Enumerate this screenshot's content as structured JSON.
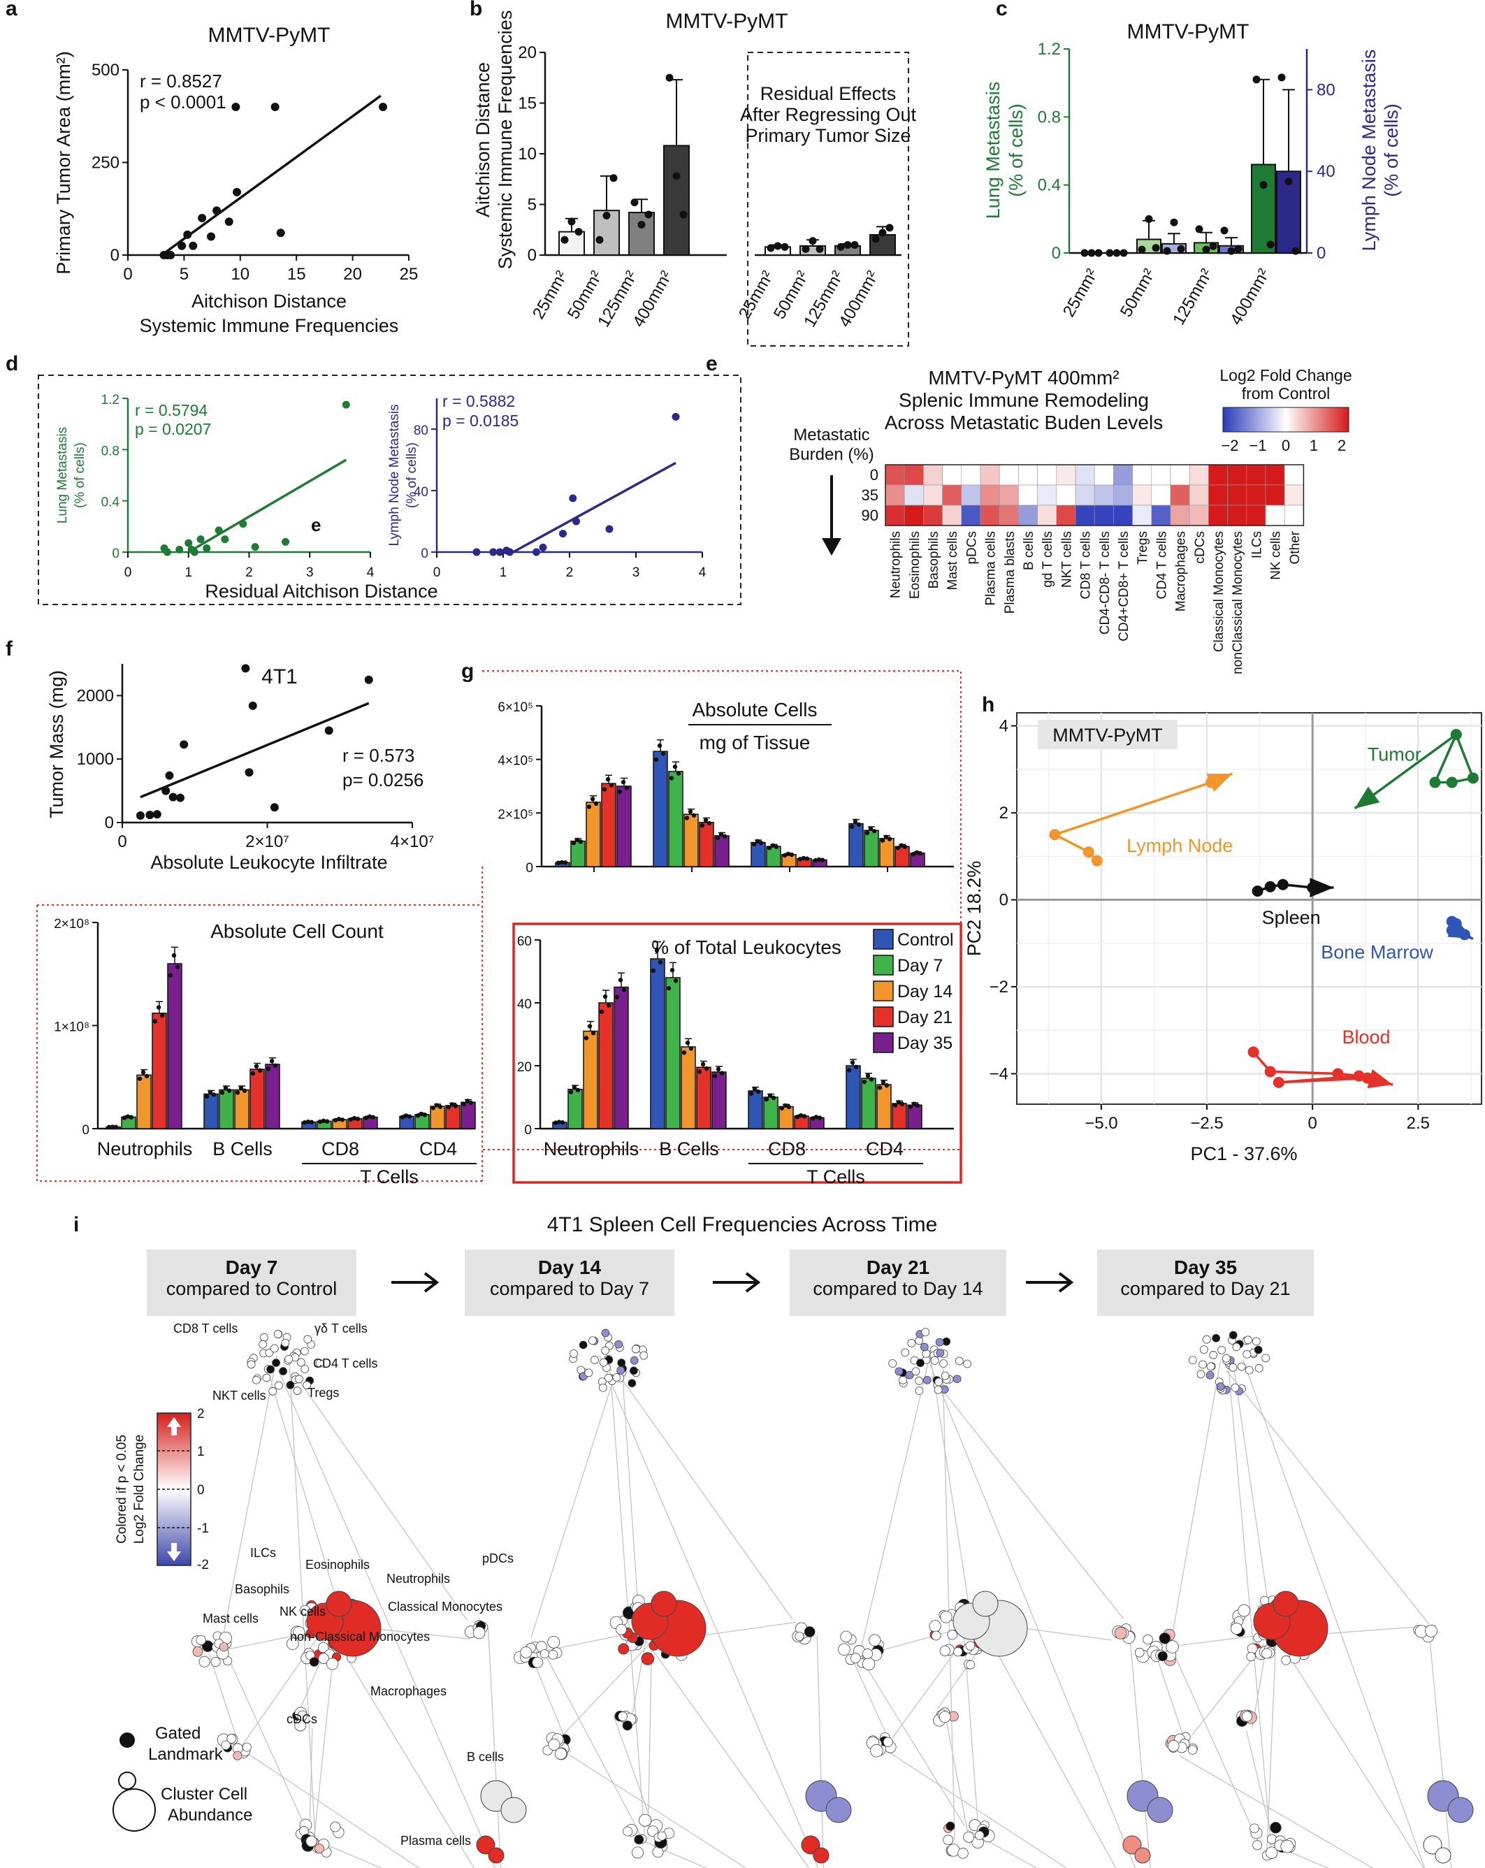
{
  "colors": {
    "green": "#1e7a34",
    "navy": "#2b2a8a",
    "orange": "#f0962c",
    "red": "#e4322b",
    "blue": "#2f55b5",
    "purple": "#7a1f8e",
    "lgreen": "#3fb34a",
    "black": "#111111",
    "grid": "#e5e5e5"
  },
  "panel_labels": {
    "a": "a",
    "b": "b",
    "c": "c",
    "d": "d",
    "e": "e",
    "f": "f",
    "g": "g",
    "h": "h",
    "i": "i"
  },
  "chart_data": [
    {
      "id": "a",
      "type": "scatter",
      "title": "MMTV-PyMT",
      "ylabel": "Primary Tumor Area (mm²)",
      "xlabel": [
        "Aitchison Distance",
        "Systemic Immune Frequencies"
      ],
      "xlim": [
        0,
        25
      ],
      "ylim": [
        0,
        500
      ],
      "xticks": [
        "0",
        "5",
        "10",
        "15",
        "20",
        "25"
      ],
      "yticks": [
        "0",
        "250",
        "500"
      ],
      "stats": [
        "r = 0.8527",
        "p < 0.0001"
      ],
      "x": [
        3.2,
        3.5,
        3.8,
        4.8,
        5.3,
        5.8,
        6.6,
        7.4,
        7.9,
        9.0,
        9.6,
        9.7,
        13.1,
        13.6,
        22.7
      ],
      "y": [
        0,
        0,
        0,
        25,
        55,
        25,
        100,
        50,
        120,
        90,
        400,
        170,
        400,
        60,
        400
      ],
      "fit": [
        [
          3,
          0
        ],
        [
          22.5,
          430
        ]
      ]
    },
    {
      "id": "b",
      "type": "bar",
      "title": "MMTV-PyMT",
      "ylabel": [
        "Aitchison Distance",
        "Systemic Immune Frequencies"
      ],
      "ylim": [
        0,
        20
      ],
      "yticks": [
        "0",
        "5",
        "10",
        "15",
        "20"
      ],
      "categories": [
        "25mm²",
        "50mm²",
        "125mm²",
        "400mm²"
      ],
      "box_text": [
        "Residual Effects",
        "After Regressing Out",
        "Primary Tumor Size"
      ],
      "groups": [
        {
          "name": "",
          "values": [
            2.3,
            4.4,
            4.2,
            10.8
          ],
          "sd": [
            1.3,
            3.4,
            1.3,
            6.5
          ],
          "points": [
            [
              1.5,
              3.3,
              2.3
            ],
            [
              1.5,
              3.9,
              7.6
            ],
            [
              5.2,
              3.0,
              4.0
            ],
            [
              17.5,
              7.8,
              4.0
            ]
          ]
        },
        {
          "name": "Residual Effects",
          "values": [
            0.8,
            0.9,
            0.9,
            2.0
          ],
          "sd": [
            0.2,
            0.6,
            0.2,
            0.8
          ],
          "points": [
            [
              0.7,
              0.9,
              0.8
            ],
            [
              0.6,
              1.4,
              0.6
            ],
            [
              0.8,
              1.0,
              1.0
            ],
            [
              1.6,
              2.2,
              2.7
            ]
          ]
        }
      ],
      "colors": [
        "#f3f3f3",
        "#bfbfbf",
        "#808080",
        "#3a3a3a"
      ]
    },
    {
      "id": "c",
      "type": "bar",
      "title": "MMTV-PyMT",
      "ylabel": [
        "Lung Metastasis",
        "(% of cells)"
      ],
      "y2label": [
        "Lymph Node Metastasis",
        "(% of cells)"
      ],
      "ylim": [
        0,
        1.2
      ],
      "y2lim": [
        0,
        100
      ],
      "yticks": [
        "0",
        "0.4",
        "0.8",
        "1.2"
      ],
      "y2ticks": [
        "0",
        "40",
        "80"
      ],
      "categories": [
        "25mm²",
        "50mm²",
        "125mm²",
        "400mm²"
      ],
      "series": [
        {
          "name": "Lung Metastasis",
          "values": [
            0,
            0.08,
            0.06,
            0.52
          ],
          "sd": [
            0,
            0.11,
            0.06,
            0.5
          ],
          "points": [
            [
              0,
              0,
              0
            ],
            [
              0.02,
              0.2,
              0.03
            ],
            [
              0.14,
              0.02,
              0.04
            ],
            [
              1.02,
              0.4,
              0.05
            ]
          ]
        },
        {
          "name": "Lymph Node Metastasis",
          "values": [
            0,
            4.5,
            3.5,
            40
          ],
          "sd": [
            0,
            5,
            4,
            40
          ],
          "points": [
            [
              0,
              0,
              0
            ],
            [
              1,
              15,
              2
            ],
            [
              11,
              1,
              2
            ],
            [
              86,
              35,
              1
            ]
          ]
        }
      ],
      "colors": {
        "lung_shades": [
          "#e8f5e3",
          "#a8d99b",
          "#6fbf62",
          "#1e7a34"
        ],
        "ln_shades": [
          "#e3e6f5",
          "#a7b0df",
          "#6f79c6",
          "#2b2a8a"
        ]
      }
    },
    {
      "id": "d1",
      "type": "scatter",
      "ylabel": [
        "Lung Metastasis",
        "(% of cells)"
      ],
      "xlabel": "Residual Aitchison Distance",
      "xlim": [
        0,
        4
      ],
      "ylim": [
        0,
        1.2
      ],
      "xticks": [
        "0",
        "1",
        "2",
        "3",
        "4"
      ],
      "yticks": [
        "0",
        "0.4",
        "0.8",
        "1.2"
      ],
      "stats": [
        "r = 0.5794",
        "p = 0.0207"
      ],
      "annotation": "e",
      "x": [
        0.6,
        0.65,
        0.85,
        1.0,
        1.05,
        1.1,
        1.2,
        1.3,
        1.5,
        1.6,
        1.9,
        2.1,
        2.6,
        3.6
      ],
      "y": [
        0.03,
        0.0,
        0.02,
        0.07,
        0.02,
        0.0,
        0.1,
        0.03,
        0.17,
        0.1,
        0.22,
        0.04,
        0.08,
        1.15
      ],
      "fit": [
        [
          1.0,
          0
        ],
        [
          3.6,
          0.72
        ]
      ]
    },
    {
      "id": "d2",
      "type": "scatter",
      "ylabel": [
        "Lymph Node Metastasis",
        "(% of cells)"
      ],
      "xlim": [
        0,
        4
      ],
      "ylim": [
        0,
        100
      ],
      "xticks": [
        "0",
        "1",
        "2",
        "3",
        "4"
      ],
      "yticks": [
        "0",
        "40",
        "80"
      ],
      "stats": [
        "r = 0.5882",
        "p = 0.0185"
      ],
      "x": [
        0.6,
        0.85,
        0.95,
        1.05,
        1.1,
        1.5,
        1.6,
        1.9,
        2.05,
        2.1,
        2.6,
        3.6
      ],
      "y": [
        0,
        0,
        0,
        1,
        0,
        0,
        3,
        12,
        35,
        20,
        15,
        88
      ],
      "fit": [
        [
          1.15,
          0
        ],
        [
          3.6,
          58
        ]
      ]
    },
    {
      "id": "e",
      "type": "heatmap",
      "title": [
        "MMTV-PyMT  400mm²",
        "Splenic Immune Remodeling",
        "Across Metastatic Buden Levels"
      ],
      "legend_title": [
        "Log2 Fold Change",
        "from Control"
      ],
      "legend_ticks": [
        "−2",
        "−1",
        "0",
        "1",
        "2"
      ],
      "ylabel": [
        "Metastatic",
        "Burden (%)"
      ],
      "rows": [
        "0",
        "35",
        "90"
      ],
      "cols": [
        "Neutrophils",
        "Eosinophils",
        "Basophils",
        "Mast cells",
        "pDCs",
        "Plasma cells",
        "Plasma blasts",
        "B cells",
        "gd T cells",
        "NKT cells",
        "CD8 T cells",
        "CD4-CD8- T cells",
        "CD4+CD8+ T cells",
        "Tregs",
        "CD4 T cells",
        "Macrophages",
        "cDCs",
        "Classical Monocytes",
        "nonClassical Monocytes",
        "ILCs",
        "NK cells",
        "Other"
      ],
      "values": [
        [
          1.5,
          1.6,
          0.4,
          0.0,
          0.0,
          0.5,
          0.0,
          0.0,
          0.0,
          0.2,
          -0.3,
          0.0,
          -1.0,
          0.0,
          0.0,
          0.0,
          0.3,
          2.0,
          2.0,
          2.0,
          2.0,
          0.0
        ],
        [
          1.0,
          -0.3,
          0.3,
          1.4,
          -0.6,
          1.0,
          0.8,
          0.0,
          -0.2,
          0.0,
          -0.4,
          -0.6,
          -0.8,
          0.2,
          0.0,
          1.4,
          0.4,
          2.0,
          2.0,
          2.0,
          2.0,
          0.2
        ],
        [
          1.8,
          2.0,
          1.7,
          0.4,
          -1.7,
          1.5,
          1.2,
          -1.0,
          0.3,
          1.6,
          -1.9,
          -1.9,
          -1.9,
          -0.2,
          -1.6,
          0.8,
          0.6,
          2.0,
          2.0,
          2.0,
          0.0,
          0.0
        ]
      ]
    },
    {
      "id": "f",
      "type": "scatter",
      "title": "4T1",
      "ylabel": "Tumor Mass (mg)",
      "xlabel": "Absolute Leukocyte Infiltrate",
      "xlim": [
        0,
        40000000
      ],
      "ylim": [
        0,
        2500
      ],
      "xticks": [
        "0",
        "2×10⁷",
        "4×10⁷"
      ],
      "yticks": [
        "0",
        "1000",
        "2000"
      ],
      "stats": [
        "r = 0.573",
        "p= 0.0256"
      ],
      "x": [
        2500000,
        3800000,
        4800000,
        6000000,
        6500000,
        7000000,
        8000000,
        8500000,
        17000000,
        17500000,
        18000000,
        21000000,
        28500000,
        34000000
      ],
      "y": [
        110,
        120,
        130,
        500,
        740,
        400,
        390,
        1230,
        2430,
        790,
        1840,
        240,
        1450,
        2250
      ],
      "fit": [
        [
          2500000,
          400
        ],
        [
          34000000,
          1880
        ]
      ]
    },
    {
      "id": "g1",
      "type": "bar",
      "title": [
        "Absolute Cells",
        "mg of Tissue"
      ],
      "ylim": [
        0,
        600000
      ],
      "yticks": [
        "0",
        "2×10⁵",
        "4×10⁵",
        "6×10⁵"
      ],
      "categories": [
        "Neutrophils",
        "B Cells",
        "CD8",
        "CD4"
      ],
      "series": [
        {
          "name": "Control",
          "values": [
            15000,
            430000,
            90000,
            160000
          ]
        },
        {
          "name": "Day 7",
          "values": [
            95000,
            355000,
            75000,
            135000
          ]
        },
        {
          "name": "Day 14",
          "values": [
            240000,
            195000,
            45000,
            105000
          ]
        },
        {
          "name": "Day 21",
          "values": [
            310000,
            165000,
            30000,
            75000
          ]
        },
        {
          "name": "Day 35",
          "values": [
            300000,
            115000,
            25000,
            50000
          ]
        }
      ]
    },
    {
      "id": "g2",
      "type": "bar",
      "title": "Absolute Cell Count",
      "ylim": [
        0,
        250000000
      ],
      "yticks": [
        "0",
        "1×10⁸",
        "2×10⁸"
      ],
      "categories": [
        "Neutrophils",
        "B Cells",
        "CD8",
        "CD4"
      ],
      "group_label": "T  Cells",
      "series": [
        {
          "name": "Control",
          "values": [
            2000000,
            42000000,
            8000000,
            15000000
          ]
        },
        {
          "name": "Day 7",
          "values": [
            14000000,
            47000000,
            9000000,
            17000000
          ]
        },
        {
          "name": "Day 14",
          "values": [
            65000000,
            47000000,
            11000000,
            27000000
          ]
        },
        {
          "name": "Day 21",
          "values": [
            140000000,
            72000000,
            12000000,
            28000000
          ]
        },
        {
          "name": "Day 35",
          "values": [
            200000000,
            78000000,
            14000000,
            32000000
          ]
        }
      ]
    },
    {
      "id": "g3",
      "type": "bar",
      "title": "% of Total Leukocytes",
      "ylim": [
        0,
        60
      ],
      "yticks": [
        "0",
        "20",
        "40",
        "60"
      ],
      "categories": [
        "Neutrophils",
        "B Cells",
        "CD8",
        "CD4"
      ],
      "group_label": "T  Cells",
      "series": [
        {
          "name": "Control",
          "values": [
            2,
            54,
            12,
            20
          ]
        },
        {
          "name": "Day 7",
          "values": [
            12.5,
            48,
            10,
            16
          ]
        },
        {
          "name": "Day 14",
          "values": [
            31,
            26,
            7,
            14
          ]
        },
        {
          "name": "Day 21",
          "values": [
            40,
            19.5,
            4,
            8
          ]
        },
        {
          "name": "Day 35",
          "values": [
            45,
            18,
            3.5,
            7.5
          ]
        }
      ],
      "legend": [
        "Control",
        "Day 7",
        "Day 14",
        "Day 21",
        "Day 35"
      ]
    },
    {
      "id": "h",
      "type": "line",
      "title": "MMTV-PyMT",
      "xlabel": "PC1 - 37.6%",
      "ylabel": "PC2 18.2%",
      "xlim": [
        -7,
        4
      ],
      "ylim": [
        -4.7,
        4.3
      ],
      "xticks": [
        "−5.0",
        "−2.5",
        "0",
        "2.5"
      ],
      "yticks": [
        "−4",
        "−2",
        "0",
        "2",
        "4"
      ],
      "series": [
        {
          "name": "Lymph Node",
          "points": [
            [
              -5.1,
              0.9
            ],
            [
              -5.3,
              1.1
            ],
            [
              -6.1,
              1.5
            ],
            [
              -2.4,
              2.7
            ],
            [
              -1.9,
              2.9
            ]
          ]
        },
        {
          "name": "Tumor",
          "points": [
            [
              3.4,
              3.8
            ],
            [
              2.9,
              2.7
            ],
            [
              3.3,
              2.7
            ],
            [
              3.8,
              2.8
            ],
            [
              3.4,
              3.8
            ],
            [
              1.0,
              2.1
            ]
          ]
        },
        {
          "name": "Spleen",
          "points": [
            [
              -1.3,
              0.2
            ],
            [
              -1.0,
              0.3
            ],
            [
              -0.7,
              0.35
            ],
            [
              0.0,
              0.28
            ],
            [
              0.5,
              0.28
            ]
          ]
        },
        {
          "name": "Bone Marrow",
          "points": [
            [
              3.3,
              -0.5
            ],
            [
              3.4,
              -0.55
            ],
            [
              3.3,
              -0.7
            ],
            [
              3.6,
              -0.8
            ],
            [
              3.8,
              -0.9
            ]
          ]
        },
        {
          "name": "Blood",
          "points": [
            [
              -1.4,
              -3.5
            ],
            [
              -1.0,
              -3.95
            ],
            [
              0.6,
              -4.0
            ],
            [
              1.1,
              -4.05
            ],
            [
              -0.8,
              -4.2
            ],
            [
              1.3,
              -4.1
            ],
            [
              1.9,
              -4.25
            ]
          ]
        }
      ]
    }
  ],
  "panel_i": {
    "title": "4T1 Spleen Cell Frequencies Across Time",
    "steps": [
      {
        "day": "Day 7",
        "sub": "compared to Control"
      },
      {
        "day": "Day 14",
        "sub": "compared to Day 7"
      },
      {
        "day": "Day 21",
        "sub": "compared to Day 14"
      },
      {
        "day": "Day 35",
        "sub": "compared to Day 21"
      }
    ],
    "scale_label": [
      "Colored if p < 0.05",
      "Log2 Fold Change"
    ],
    "scale_ticks": [
      "2",
      "1",
      "0",
      "-1",
      "-2"
    ],
    "legend": [
      "Gated",
      "Landmark",
      "Cluster Cell",
      "Abundance"
    ],
    "cell_labels": {
      "cd8": "CD8 T cells",
      "gd": "γδ T cells",
      "cd4": "CD4 T cells",
      "nkt": "NKT cells",
      "tregs": "Tregs",
      "ilcs": "ILCs",
      "eos": "Eosinophils",
      "neut": "Neutrophils",
      "pdcs": "pDCs",
      "baso": "Basophils",
      "classical": "Classical Monocytes",
      "nk": "NK cells",
      "mast": "Mast cells",
      "nonclassical": "non-Classical Monocytes",
      "macro": "Macrophages",
      "cdcs": "cDCs",
      "bcells": "B cells",
      "plasma": "Plasma cells"
    }
  }
}
